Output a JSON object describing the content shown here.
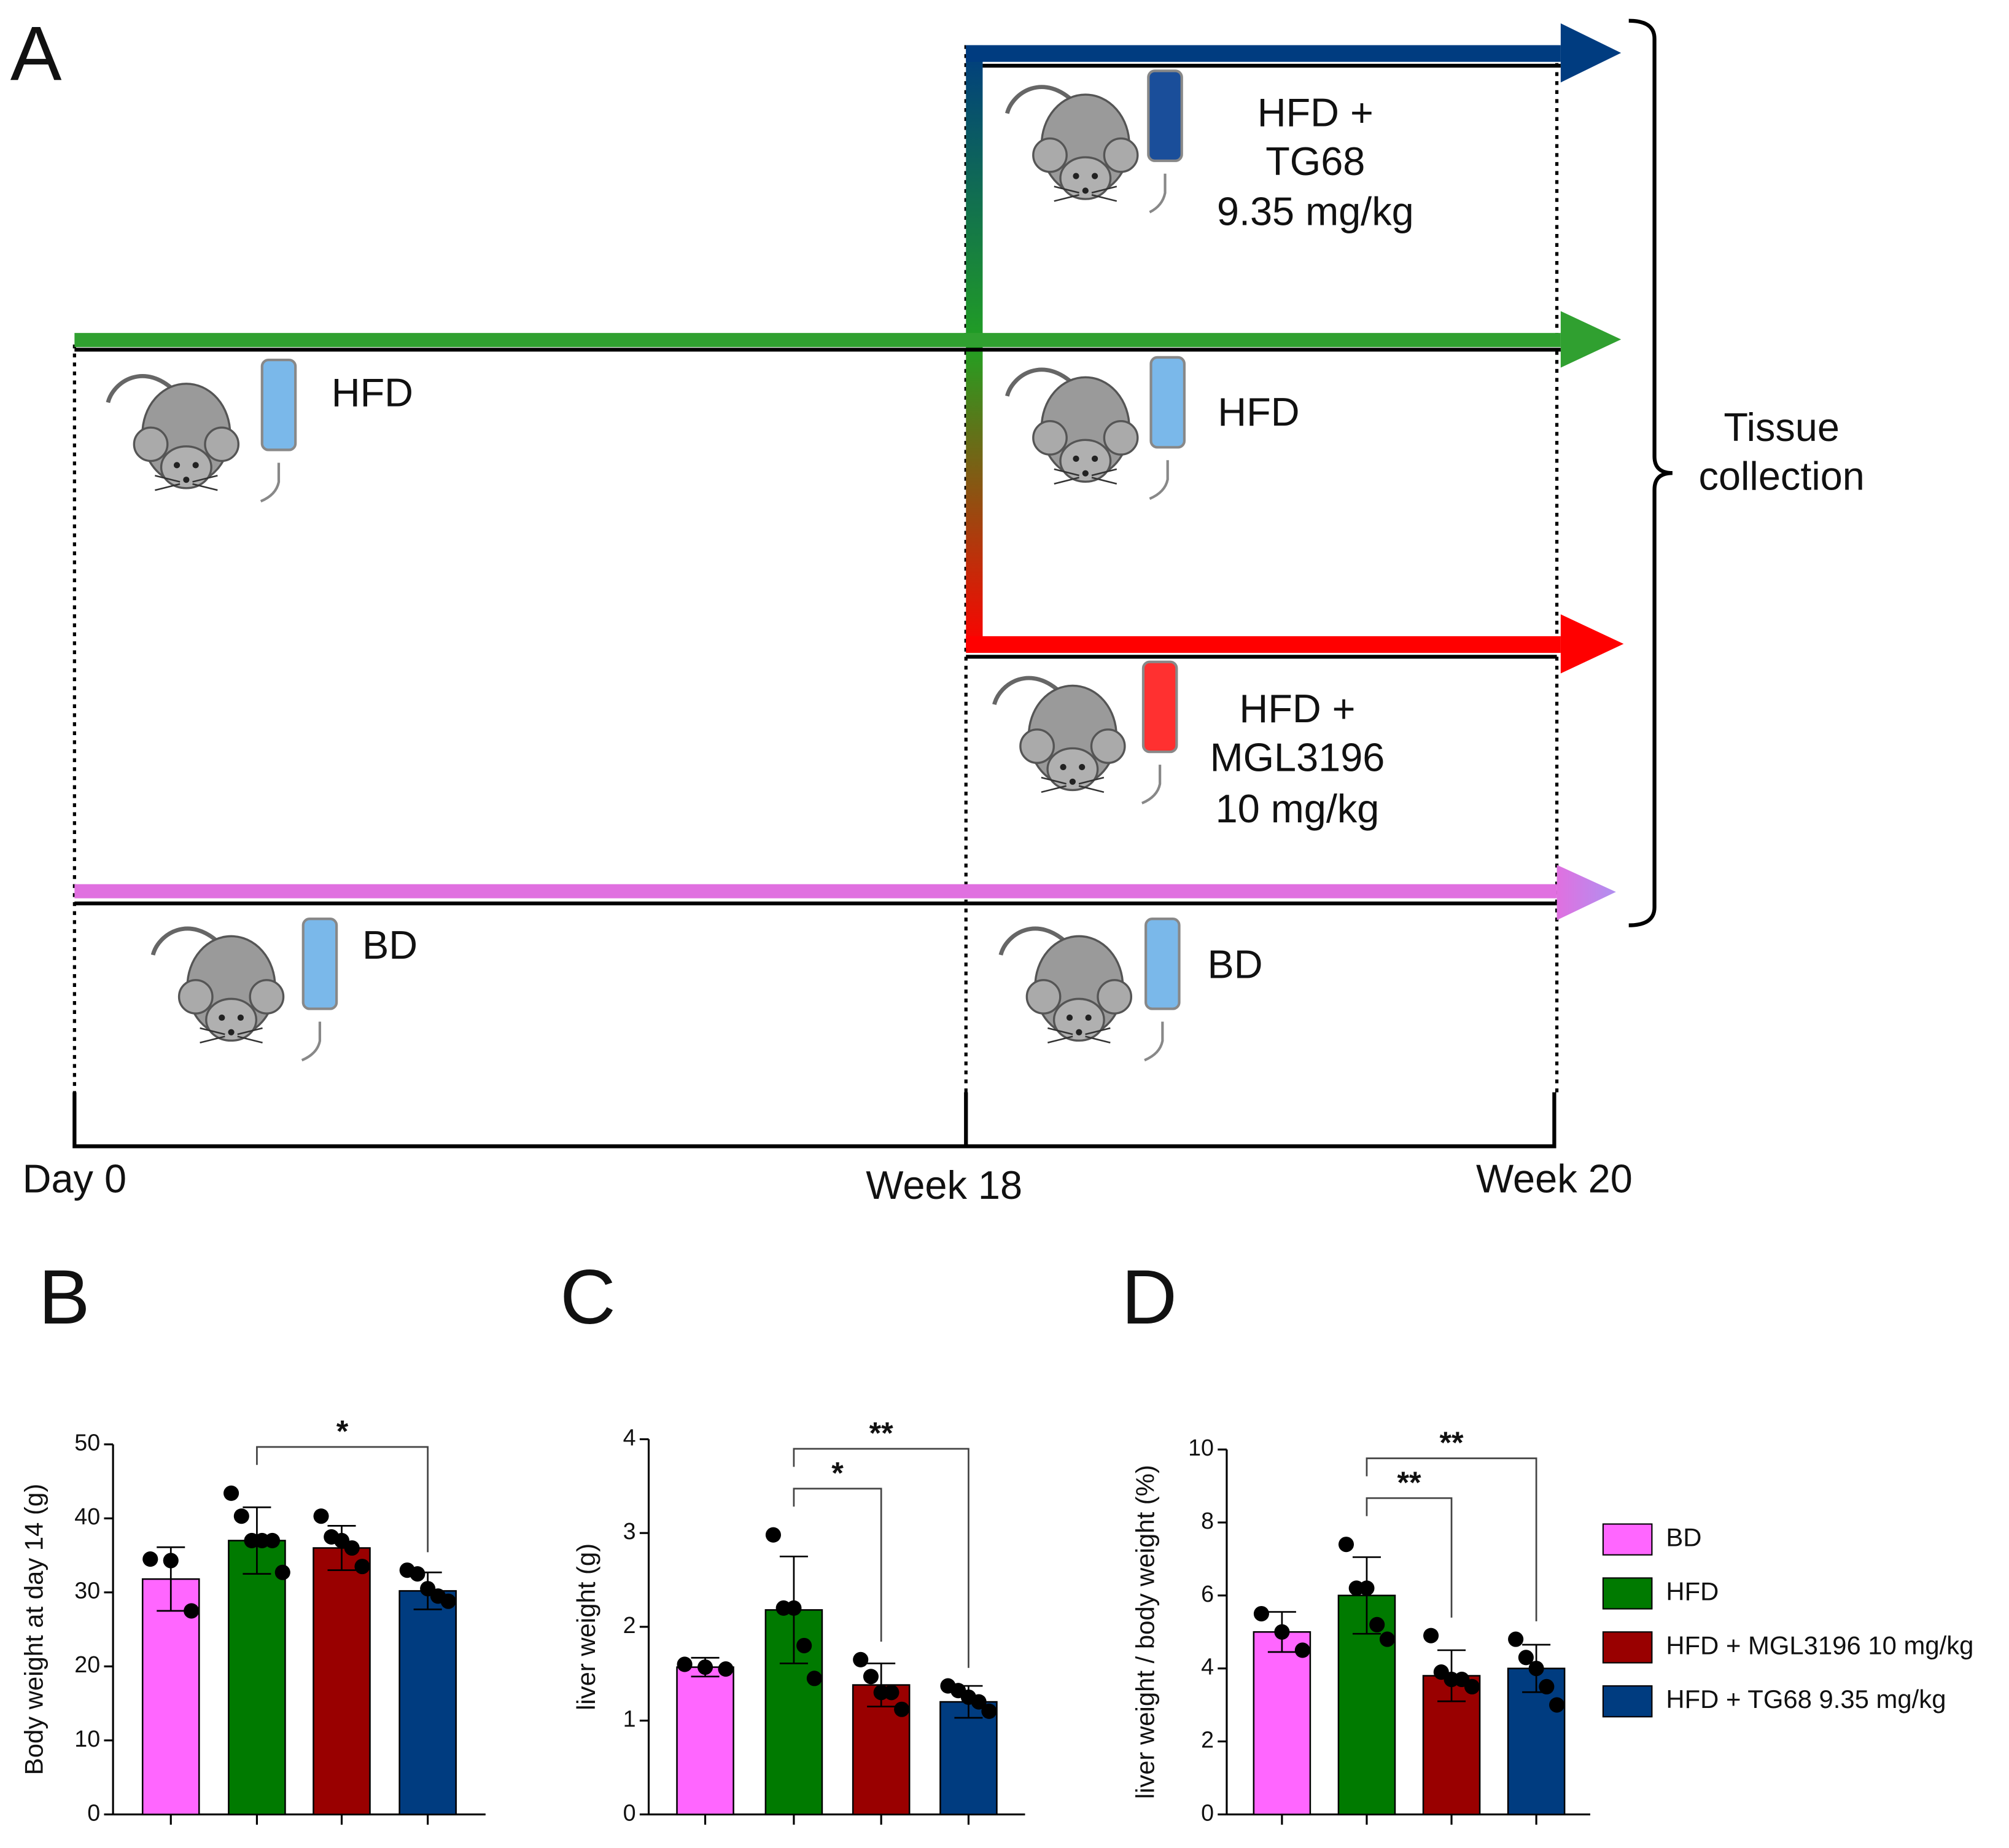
{
  "diagram": {
    "panel": "A",
    "groups": [
      {
        "lines": [
          "HFD +",
          "TG68",
          "9.35 mg/kg"
        ]
      },
      {
        "lines": [
          "HFD"
        ]
      },
      {
        "lines": [
          "HFD"
        ]
      },
      {
        "lines": [
          "HFD +",
          "MGL3196",
          "10 mg/kg"
        ]
      },
      {
        "lines": [
          "BD"
        ]
      },
      {
        "lines": [
          "BD"
        ]
      }
    ],
    "timeline": [
      "Day 0",
      "Week 18",
      "Week 20"
    ],
    "endpoint": [
      "Tissue",
      "collection"
    ]
  },
  "legend": {
    "items": [
      {
        "name": "BD",
        "color": "#ff66ff"
      },
      {
        "name": "HFD",
        "color": "#007a00"
      },
      {
        "name": "HFD + MGL3196 10 mg/kg",
        "color": "#990000"
      },
      {
        "name": "HFD + TG68 9.35 mg/kg",
        "color": "#003c80"
      }
    ]
  },
  "chart_data": [
    {
      "type": "bar",
      "panel": "B",
      "ylabel": "Body weight at day 14 (g)",
      "values": [
        31.8,
        37,
        36,
        30.2
      ],
      "errors": [
        4.3,
        4.5,
        3,
        2.5
      ],
      "points": [
        [
          34.5,
          34.3,
          27.5
        ],
        [
          43.4,
          40.3,
          37,
          37,
          37,
          32.7
        ],
        [
          40.3,
          37.5,
          37,
          36,
          33.5
        ],
        [
          33,
          32.5,
          30.5,
          29.5,
          28.8
        ]
      ],
      "ylim": [
        0,
        50
      ],
      "yticks": [
        0,
        10,
        20,
        30,
        40,
        50
      ],
      "significance": [
        {
          "between": [
            1,
            3
          ],
          "label": "*"
        }
      ]
    },
    {
      "type": "bar",
      "panel": "C",
      "ylabel": "liver weight (g)",
      "values": [
        1.57,
        2.18,
        1.38,
        1.2
      ],
      "errors": [
        0.1,
        0.57,
        0.23,
        0.17
      ],
      "points": [
        [
          1.6,
          1.57,
          1.55
        ],
        [
          2.98,
          2.2,
          2.2,
          1.8,
          1.45
        ],
        [
          1.65,
          1.47,
          1.3,
          1.3,
          1.12
        ],
        [
          1.37,
          1.32,
          1.25,
          1.2,
          1.1
        ]
      ],
      "ylim": [
        0,
        4
      ],
      "yticks": [
        0,
        1,
        2,
        3,
        4
      ],
      "significance": [
        {
          "between": [
            1,
            2
          ],
          "label": "*"
        },
        {
          "between": [
            1,
            3
          ],
          "label": "**"
        }
      ]
    },
    {
      "type": "bar",
      "panel": "D",
      "ylabel": "liver weight / body weight (%)",
      "values": [
        5.0,
        6.0,
        3.8,
        4.0
      ],
      "errors": [
        0.55,
        1.05,
        0.7,
        0.65
      ],
      "points": [
        [
          5.5,
          5.0,
          4.5
        ],
        [
          7.4,
          6.2,
          6.2,
          5.2,
          4.8
        ],
        [
          4.9,
          3.9,
          3.7,
          3.7,
          3.5
        ],
        [
          4.8,
          4.3,
          4.0,
          3.5,
          3.0
        ]
      ],
      "ylim": [
        0,
        10
      ],
      "yticks": [
        0,
        2,
        4,
        6,
        8,
        10
      ],
      "significance": [
        {
          "between": [
            1,
            2
          ],
          "label": "**"
        },
        {
          "between": [
            1,
            3
          ],
          "label": "**"
        }
      ]
    }
  ]
}
